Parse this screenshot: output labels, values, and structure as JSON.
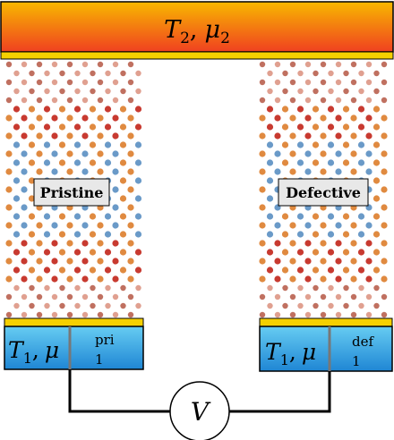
{
  "top_reservoir": {
    "var_T": "T",
    "sub_T": "2",
    "sep": ",",
    "var_mu": "μ",
    "sub_mu": "2"
  },
  "left_column": {
    "label": "Pristine",
    "var_T": "T",
    "sub_T": "1",
    "sep": ",",
    "var_mu": "μ",
    "sup_mu": "pri",
    "sub_mu": "1"
  },
  "right_column": {
    "label": "Defective",
    "var_T": "T",
    "sub_T": "1",
    "sep": ",",
    "var_mu": "μ",
    "sup_mu": "def",
    "sub_mu": "1"
  },
  "voltmeter": {
    "symbol": "V"
  },
  "colors": {
    "reservoir_top_orange": "#f8b800",
    "reservoir_top_red": "#f04020",
    "gold_contact": "#f5d000",
    "bath_blue_light": "#60c8f0",
    "bath_blue_dark": "#1e88d6",
    "atom_red": "#c83a30",
    "atom_orange": "#e08a40",
    "atom_blue": "#6a9ac8",
    "atom_pink": "#e0a090",
    "wire": "#000000"
  }
}
